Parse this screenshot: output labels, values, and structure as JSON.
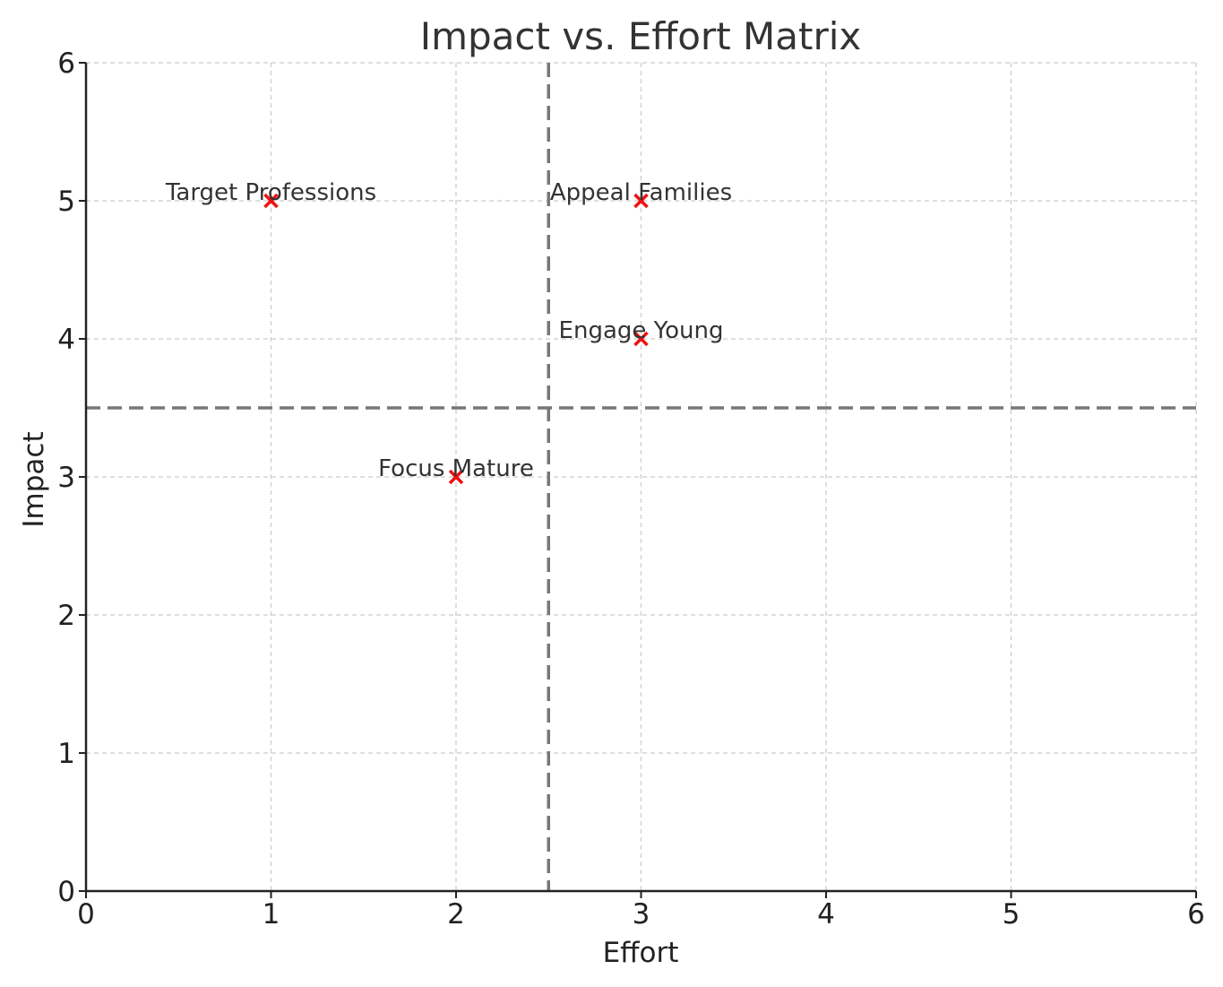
{
  "chart_data": {
    "type": "scatter",
    "title": "Impact vs. Effort Matrix",
    "xlabel": "Effort",
    "ylabel": "Impact",
    "xlim": [
      0,
      6
    ],
    "ylim": [
      0,
      6
    ],
    "xticks": [
      0,
      1,
      2,
      3,
      4,
      5,
      6
    ],
    "yticks": [
      0,
      1,
      2,
      3,
      4,
      5,
      6
    ],
    "grid": true,
    "marker": "x",
    "marker_color": "#ee1111",
    "threshold_color": "#777777",
    "thresholds": {
      "x": 2.5,
      "y": 3.5
    },
    "points": [
      {
        "label": "Target Professions",
        "x": 1,
        "y": 5
      },
      {
        "label": "Appeal Families",
        "x": 3,
        "y": 5
      },
      {
        "label": "Engage Young",
        "x": 3,
        "y": 4
      },
      {
        "label": "Focus Mature",
        "x": 2,
        "y": 3
      }
    ]
  }
}
